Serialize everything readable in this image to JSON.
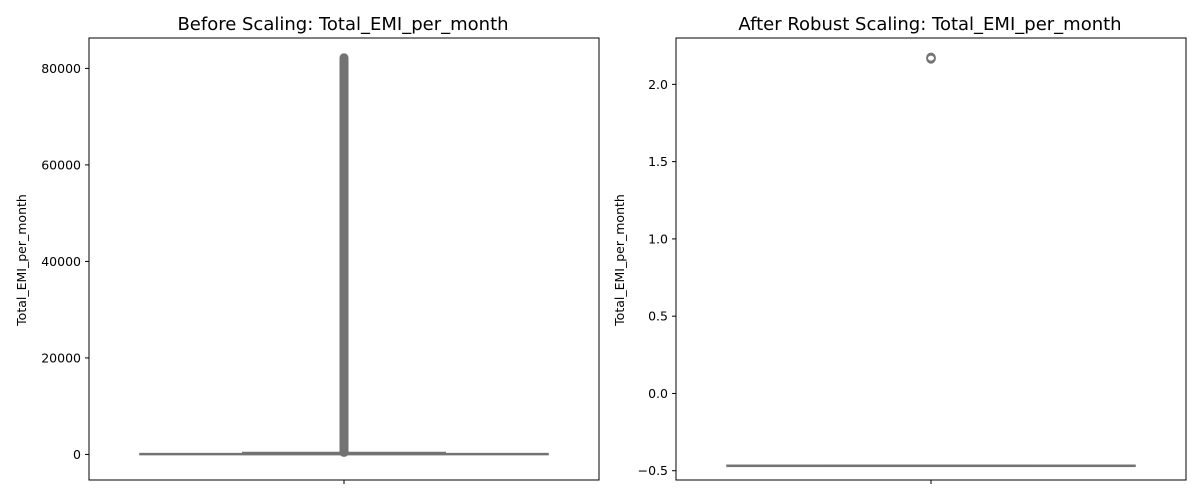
{
  "chart_data": [
    {
      "type": "box",
      "title": "Before Scaling: Total_EMI_per_month",
      "xlabel": "",
      "ylabel": "Total_EMI_per_month",
      "ylim": [
        -5300,
        86300
      ],
      "yticks": [
        0,
        20000,
        40000,
        60000,
        80000
      ],
      "ytick_labels": [
        "0",
        "20000",
        "40000",
        "60000",
        "80000"
      ],
      "box": {
        "q1": 5,
        "median": 50,
        "q3": 170,
        "whisker_low": 0,
        "whisker_high": 400
      },
      "outliers_range": [
        420,
        82200
      ],
      "color": "#737373",
      "grid": false
    },
    {
      "type": "box",
      "title": "After Robust Scaling: Total_EMI_per_month",
      "xlabel": "",
      "ylabel": "Total_EMI_per_month",
      "ylim": [
        -0.56,
        2.3
      ],
      "yticks": [
        -0.5,
        0.0,
        0.5,
        1.0,
        1.5,
        2.0
      ],
      "ytick_labels": [
        "−0.5",
        "0.0",
        "0.5",
        "1.0",
        "1.5",
        "2.0"
      ],
      "box": {
        "q1": -0.465,
        "median": -0.465,
        "q3": -0.465,
        "whisker_low": -0.465,
        "whisker_high": -0.465
      },
      "outliers": [
        2.165,
        2.17,
        2.175
      ],
      "color": "#737373",
      "grid": false
    }
  ]
}
